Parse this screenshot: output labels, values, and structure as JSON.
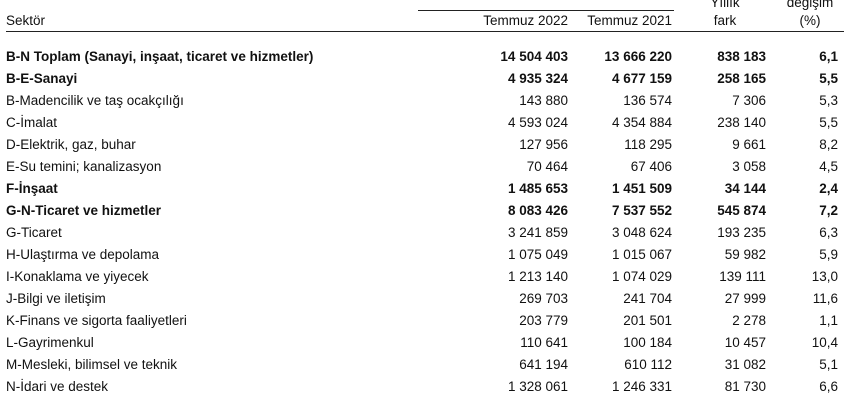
{
  "header": {
    "sector_label": "Sektör",
    "col_2022": "Temmuz 2022",
    "col_2021": "Temmuz 2021",
    "fark_top": "Yıllık",
    "fark_bottom": "fark",
    "degisim_top": "değişim",
    "degisim_bottom": "(%)"
  },
  "rows": [
    {
      "sector": "B-N Toplam (Sanayi, inşaat, ticaret ve hizmetler)",
      "v2022": "14 504 403",
      "v2021": "13 666 220",
      "fark": "838 183",
      "degisim": "6,1",
      "bold": true
    },
    {
      "sector": "B-E-Sanayi",
      "v2022": "4 935 324",
      "v2021": "4 677 159",
      "fark": "258 165",
      "degisim": "5,5",
      "bold": true
    },
    {
      "sector": "B-Madencilik ve taş ocakçılığı",
      "v2022": "143 880",
      "v2021": "136 574",
      "fark": "7 306",
      "degisim": "5,3",
      "bold": false
    },
    {
      "sector": "C-İmalat",
      "v2022": "4 593 024",
      "v2021": "4 354 884",
      "fark": "238 140",
      "degisim": "5,5",
      "bold": false
    },
    {
      "sector": "D-Elektrik, gaz, buhar",
      "v2022": "127 956",
      "v2021": "118 295",
      "fark": "9 661",
      "degisim": "8,2",
      "bold": false
    },
    {
      "sector": "E-Su temini; kanalizasyon",
      "v2022": "70 464",
      "v2021": "67 406",
      "fark": "3 058",
      "degisim": "4,5",
      "bold": false
    },
    {
      "sector": "F-İnşaat",
      "v2022": "1 485 653",
      "v2021": "1 451 509",
      "fark": "34 144",
      "degisim": "2,4",
      "bold": true
    },
    {
      "sector": "G-N-Ticaret ve hizmetler",
      "v2022": "8 083 426",
      "v2021": "7 537 552",
      "fark": "545 874",
      "degisim": "7,2",
      "bold": true
    },
    {
      "sector": "G-Ticaret",
      "v2022": "3 241 859",
      "v2021": "3 048 624",
      "fark": "193 235",
      "degisim": "6,3",
      "bold": false
    },
    {
      "sector": "H-Ulaştırma ve depolama",
      "v2022": "1 075 049",
      "v2021": "1 015 067",
      "fark": "59 982",
      "degisim": "5,9",
      "bold": false
    },
    {
      "sector": "I-Konaklama ve yiyecek",
      "v2022": "1 213 140",
      "v2021": "1 074 029",
      "fark": "139 111",
      "degisim": "13,0",
      "bold": false
    },
    {
      "sector": "J-Bilgi ve iletişim",
      "v2022": "269 703",
      "v2021": "241 704",
      "fark": "27 999",
      "degisim": "11,6",
      "bold": false
    },
    {
      "sector": "K-Finans ve sigorta faaliyetleri",
      "v2022": "203 779",
      "v2021": "201 501",
      "fark": "2 278",
      "degisim": "1,1",
      "bold": false
    },
    {
      "sector": "L-Gayrimenkul",
      "v2022": "110 641",
      "v2021": "100 184",
      "fark": "10 457",
      "degisim": "10,4",
      "bold": false
    },
    {
      "sector": "M-Mesleki, bilimsel ve teknik",
      "v2022": "641 194",
      "v2021": "610 112",
      "fark": "31 082",
      "degisim": "5,1",
      "bold": false
    },
    {
      "sector": "N-İdari ve destek",
      "v2022": "1 328 061",
      "v2021": "1 246 331",
      "fark": "81 730",
      "degisim": "6,6",
      "bold": false
    }
  ]
}
